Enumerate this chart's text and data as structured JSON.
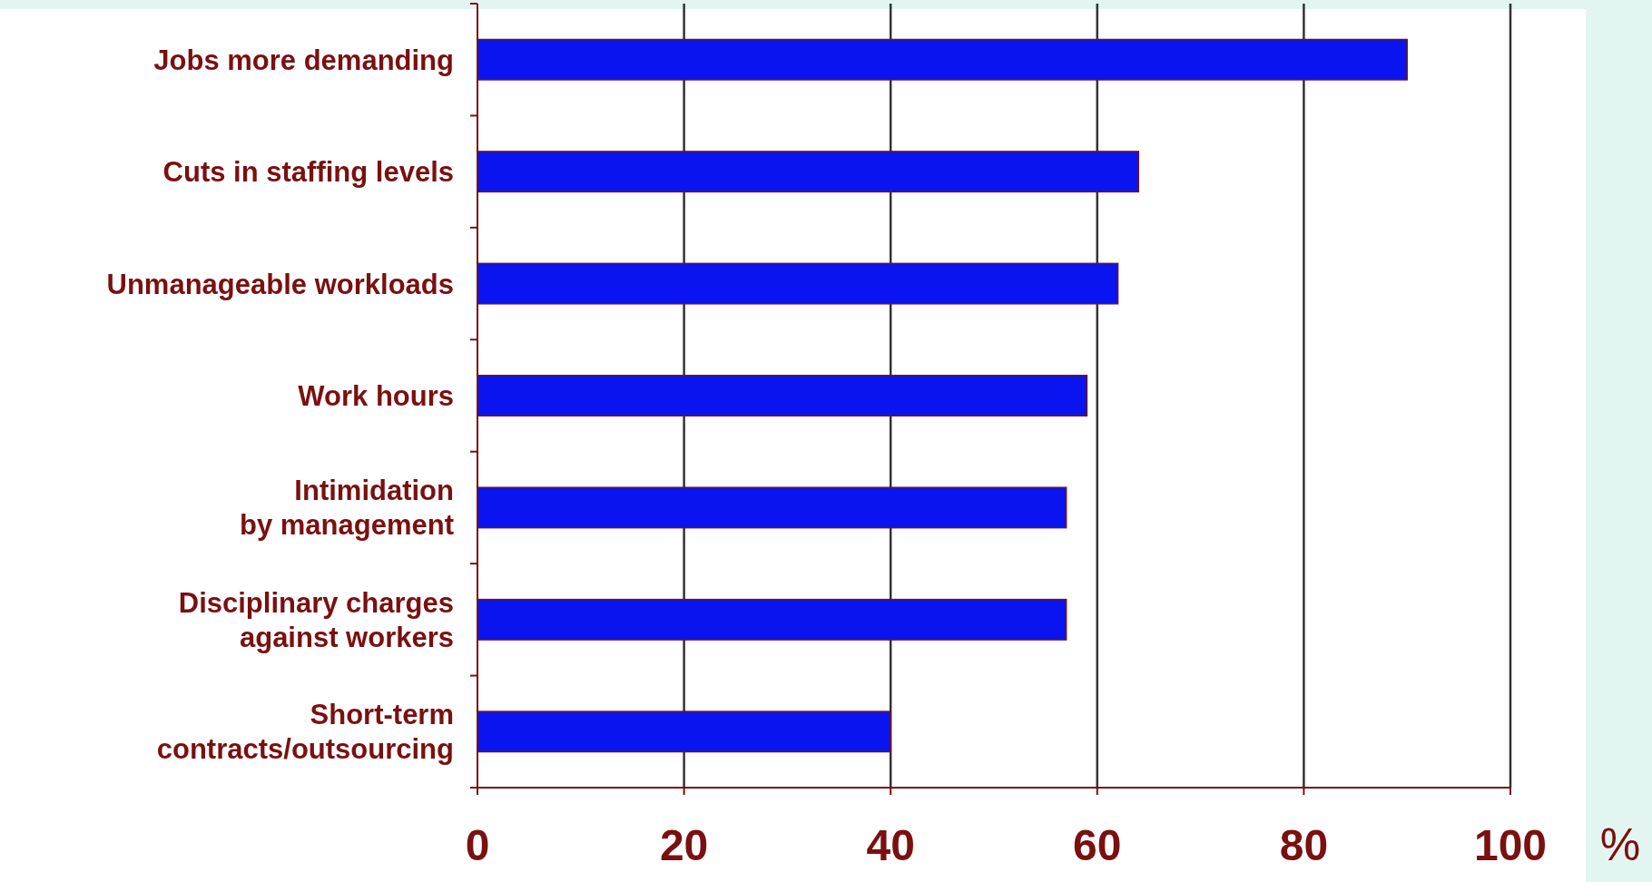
{
  "chart_data": {
    "type": "bar",
    "orientation": "horizontal",
    "xlabel": "%",
    "categories": [
      "Jobs more demanding",
      "Cuts in staffing levels",
      "Unmanageable workloads",
      "Work hours",
      "Intimidation by management",
      "Disciplinary charges against workers",
      "Short-term contracts/outsourcing"
    ],
    "values": [
      90,
      64,
      62,
      59,
      57,
      57,
      40
    ],
    "color": "#0a14f0",
    "xlim": [
      0,
      100
    ],
    "xticks": [
      0,
      20,
      40,
      60,
      80,
      100
    ],
    "grid": "x"
  }
}
